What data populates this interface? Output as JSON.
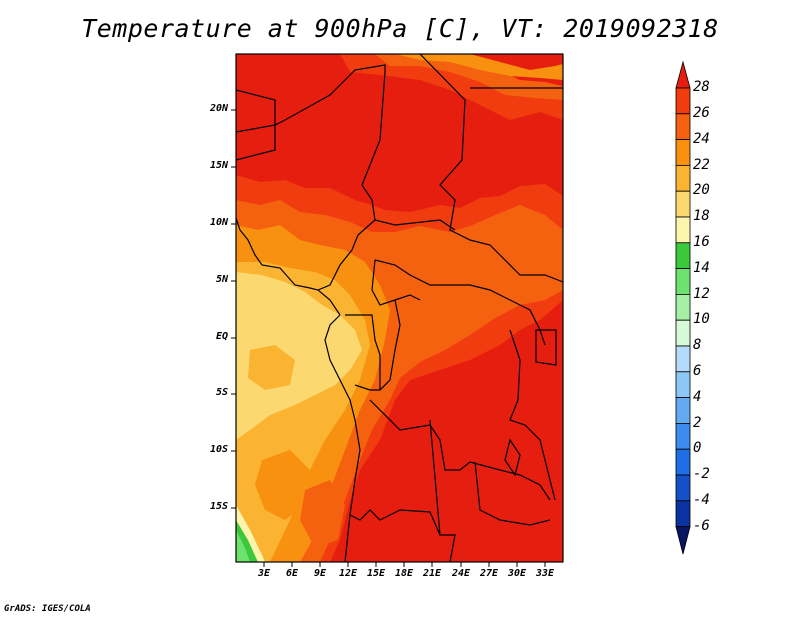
{
  "title": "Temperature at 900hPa [C], VT: 2019092318",
  "credit": "GrADS: IGES/COLA",
  "map": {
    "lat_labels": [
      "20N",
      "15N",
      "10N",
      "5N",
      "EQ",
      "5S",
      "10S",
      "15S"
    ],
    "lon_labels": [
      "3E",
      "6E",
      "9E",
      "12E",
      "15E",
      "18E",
      "21E",
      "24E",
      "27E",
      "30E",
      "33E"
    ]
  },
  "colorbar": {
    "levels": [
      "28",
      "26",
      "24",
      "22",
      "20",
      "18",
      "16",
      "14",
      "12",
      "10",
      "8",
      "6",
      "4",
      "2",
      "0",
      "-2",
      "-4",
      "-6"
    ],
    "colors": {
      "above_28": "#e61e0f",
      "26_28": "#f03c0f",
      "24_26": "#f5620f",
      "22_24": "#f8910f",
      "20_22": "#fbb432",
      "18_20": "#fcd870",
      "16_18": "#fdf5ad",
      "14_16": "#3cc83c",
      "12_14": "#6ee26e",
      "10_12": "#a6f0a6",
      "8_10": "#d6fad6",
      "6_8": "#b4dcfa",
      "4_6": "#8cc8f5",
      "2_4": "#64aaf0",
      "0_2": "#3c8cf0",
      "m2_0": "#1e6ee6",
      "m4_m2": "#1450c8",
      "m6_m4": "#0a32a0",
      "below_m6": "#0a1464"
    }
  }
}
